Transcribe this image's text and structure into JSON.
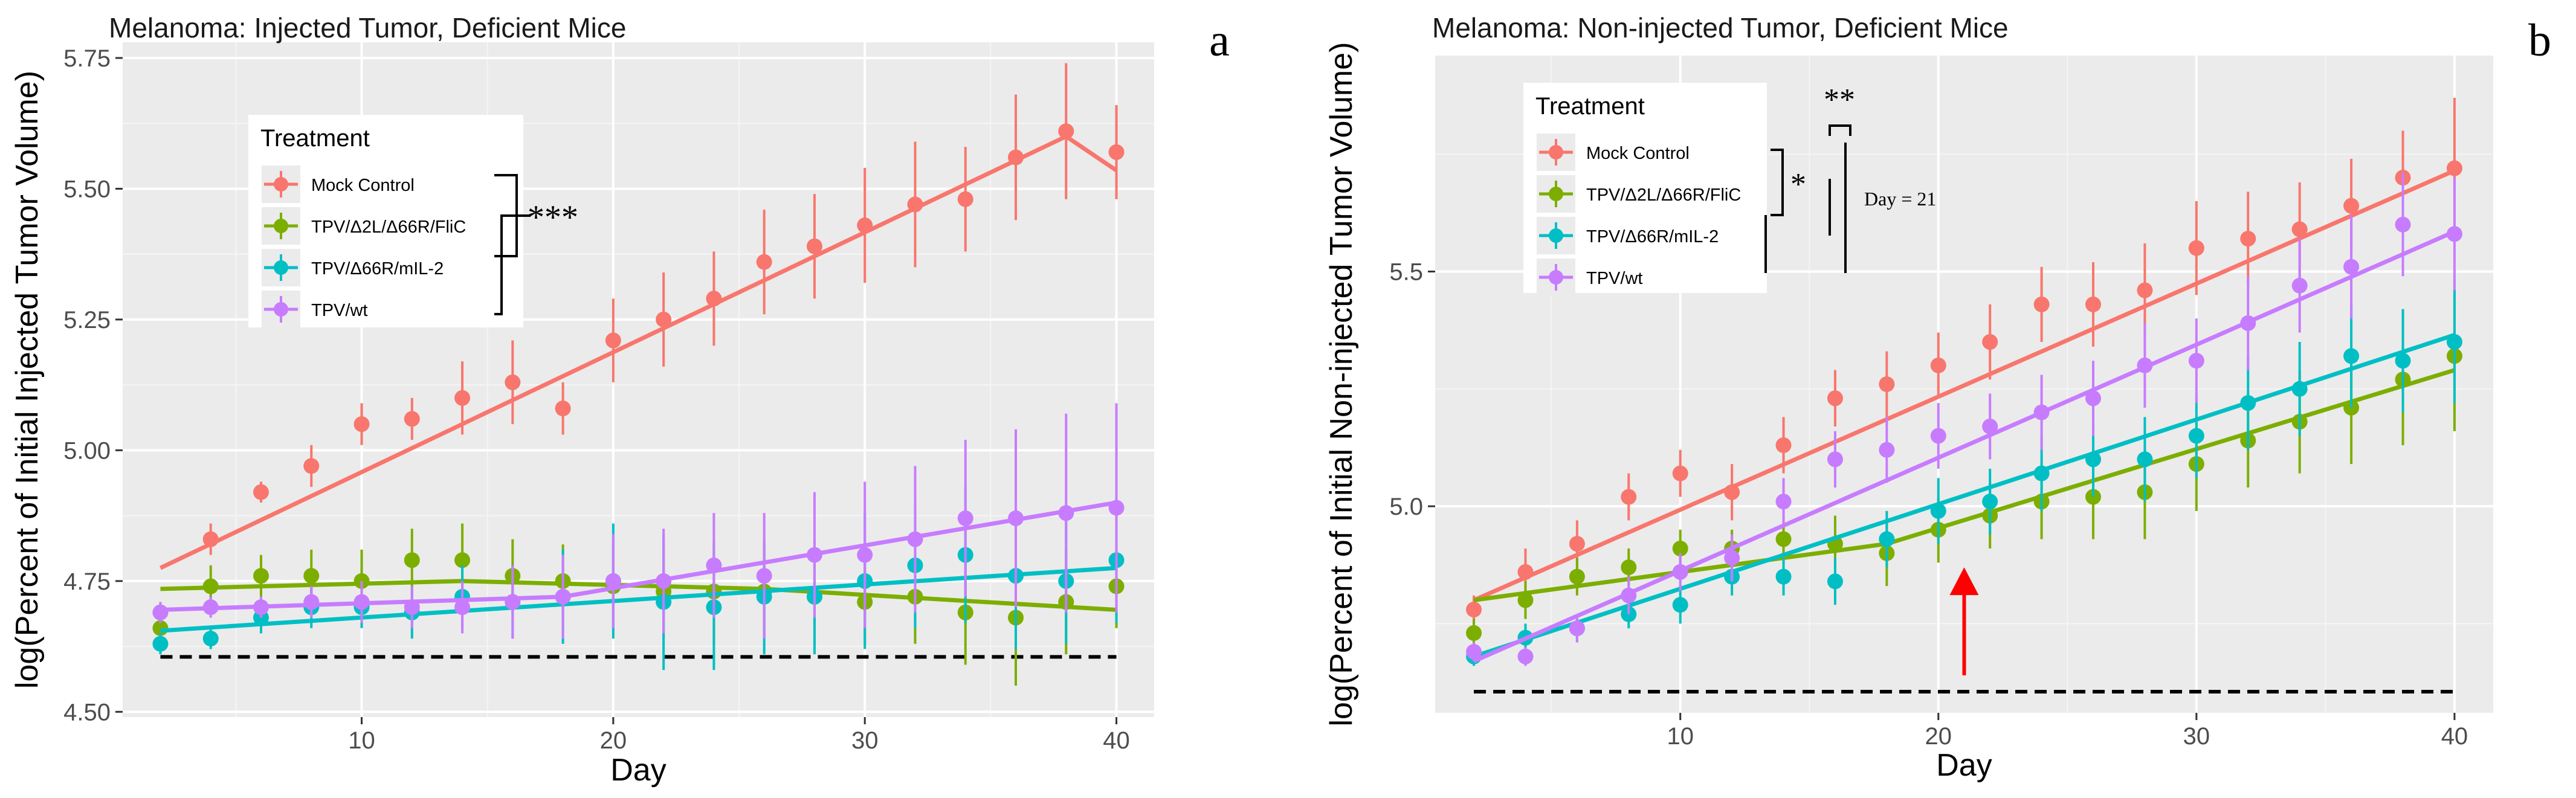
{
  "chart_data": [
    {
      "panel_label": "a",
      "type": "line",
      "title": "Melanoma: Injected Tumor, Deficient Mice",
      "xlabel": "Day",
      "ylabel": "log(Percent of Initial Injected Tumor Volume)",
      "xlim": [
        0.5,
        41.5
      ],
      "ylim": [
        4.49,
        5.78
      ],
      "x_ticks": [
        10,
        20,
        30,
        40
      ],
      "x_tick_labels": [
        "10",
        "20",
        "30",
        "40"
      ],
      "y_ticks": [
        4.5,
        4.75,
        5.0,
        5.25,
        5.5,
        5.75
      ],
      "y_tick_labels": [
        "4.50",
        "4.75",
        "5.00",
        "5.25",
        "5.50",
        "5.75"
      ],
      "grid": true,
      "legend": {
        "title": "Treatment",
        "position": "upper-left inside"
      },
      "reference_line": {
        "y": 4.605,
        "x_range": [
          2,
          40
        ],
        "style": "dashed"
      },
      "annotations": [
        {
          "text": "***",
          "brackets": [
            [
              "Mock Control",
              "TPV/Δ66R/mIL-2"
            ],
            [
              "Mock Control",
              "TPV/wt"
            ]
          ]
        }
      ],
      "series": [
        {
          "name": "Mock Control",
          "color": "#F8766D",
          "x": [
            2,
            4,
            6,
            8,
            10,
            12,
            14,
            16,
            18,
            20,
            22,
            24,
            26,
            28,
            30,
            32,
            34,
            36,
            38,
            40
          ],
          "y": [
            4.69,
            4.83,
            4.92,
            4.97,
            5.05,
            5.06,
            5.1,
            5.13,
            5.08,
            5.21,
            5.25,
            5.29,
            5.36,
            5.39,
            5.43,
            5.47,
            5.48,
            5.56,
            5.61,
            5.57
          ],
          "err": [
            0.02,
            0.03,
            0.02,
            0.04,
            0.04,
            0.04,
            0.07,
            0.08,
            0.05,
            0.08,
            0.09,
            0.09,
            0.1,
            0.1,
            0.11,
            0.12,
            0.1,
            0.12,
            0.13,
            0.09
          ],
          "fit": [
            [
              2,
              4.775
            ],
            [
              38,
              5.6
            ],
            [
              40,
              5.535
            ]
          ]
        },
        {
          "name": "TPV/Δ2L/Δ66R/FliC",
          "color": "#7CAE00",
          "x": [
            2,
            4,
            6,
            8,
            10,
            12,
            14,
            16,
            18,
            20,
            22,
            24,
            26,
            28,
            30,
            32,
            34,
            36,
            38,
            40
          ],
          "y": [
            4.66,
            4.74,
            4.76,
            4.76,
            4.75,
            4.79,
            4.79,
            4.76,
            4.75,
            4.74,
            4.73,
            4.73,
            4.73,
            4.72,
            4.71,
            4.72,
            4.69,
            4.68,
            4.71,
            4.74
          ],
          "err": [
            0.02,
            0.04,
            0.04,
            0.05,
            0.06,
            0.06,
            0.07,
            0.07,
            0.07,
            0.08,
            0.09,
            0.1,
            0.09,
            0.09,
            0.08,
            0.09,
            0.1,
            0.13,
            0.1,
            0.08
          ],
          "fit": [
            [
              2,
              4.735
            ],
            [
              14,
              4.75
            ],
            [
              26,
              4.735
            ],
            [
              40,
              4.695
            ]
          ]
        },
        {
          "name": "TPV/Δ66R/mIL-2",
          "color": "#00BFC4",
          "x": [
            2,
            4,
            6,
            8,
            10,
            12,
            14,
            16,
            18,
            20,
            22,
            24,
            26,
            28,
            30,
            32,
            34,
            36,
            38,
            40
          ],
          "y": [
            4.63,
            4.64,
            4.68,
            4.7,
            4.7,
            4.69,
            4.72,
            4.71,
            4.72,
            4.75,
            4.71,
            4.7,
            4.72,
            4.72,
            4.75,
            4.78,
            4.8,
            4.76,
            4.75,
            4.79
          ],
          "err": [
            0.02,
            0.02,
            0.03,
            0.04,
            0.04,
            0.05,
            0.06,
            0.07,
            0.09,
            0.11,
            0.13,
            0.12,
            0.11,
            0.11,
            0.13,
            0.12,
            0.13,
            0.14,
            0.12,
            0.12
          ],
          "fit": [
            [
              2,
              4.655
            ],
            [
              40,
              4.775
            ]
          ]
        },
        {
          "name": "TPV/wt",
          "color": "#C77CFF",
          "x": [
            2,
            4,
            6,
            8,
            10,
            12,
            14,
            16,
            18,
            20,
            22,
            24,
            26,
            28,
            30,
            32,
            34,
            36,
            38,
            40
          ],
          "y": [
            4.69,
            4.7,
            4.7,
            4.71,
            4.71,
            4.7,
            4.7,
            4.71,
            4.72,
            4.75,
            4.75,
            4.78,
            4.76,
            4.8,
            4.8,
            4.83,
            4.87,
            4.87,
            4.88,
            4.89
          ],
          "err": [
            0.02,
            0.02,
            0.02,
            0.03,
            0.04,
            0.04,
            0.05,
            0.07,
            0.08,
            0.09,
            0.1,
            0.1,
            0.12,
            0.12,
            0.14,
            0.14,
            0.15,
            0.17,
            0.19,
            0.2
          ],
          "fit": [
            [
              2,
              4.695
            ],
            [
              18,
              4.72
            ],
            [
              40,
              4.9
            ]
          ]
        }
      ]
    },
    {
      "panel_label": "b",
      "type": "line",
      "title": "Melanoma: Non-injected Tumor, Deficient Mice",
      "xlabel": "Day",
      "ylabel": "log(Percent of Initial Non-injected Tumor Volume)",
      "xlim": [
        0.5,
        41.5
      ],
      "ylim": [
        4.56,
        5.96
      ],
      "x_ticks": [
        10,
        20,
        30,
        40
      ],
      "x_tick_labels": [
        "10",
        "20",
        "30",
        "40"
      ],
      "y_ticks": [
        5.0,
        5.5
      ],
      "y_tick_labels": [
        "5.0",
        "5.5"
      ],
      "grid": true,
      "legend": {
        "title": "Treatment",
        "position": "upper-left inside"
      },
      "reference_line": {
        "y": 4.605,
        "x_range": [
          2,
          40
        ],
        "style": "dashed"
      },
      "arrow": {
        "x": 21,
        "y_from": 4.64,
        "y_to": 4.87,
        "color": "#FF0000"
      },
      "annotations": [
        {
          "text": "*",
          "between": [
            "Mock Control",
            "TPV/Δ2L/Δ66R/FliC"
          ]
        },
        {
          "text": "**",
          "between": [
            "Mock Control",
            "TPV/Δ66R/mIL-2"
          ]
        },
        {
          "text": "Day = 21"
        }
      ],
      "series": [
        {
          "name": "Mock Control",
          "color": "#F8766D",
          "x": [
            2,
            4,
            6,
            8,
            10,
            12,
            14,
            16,
            18,
            20,
            22,
            24,
            26,
            28,
            30,
            32,
            34,
            36,
            38,
            40
          ],
          "y": [
            4.78,
            4.86,
            4.92,
            5.02,
            5.07,
            5.03,
            5.13,
            5.23,
            5.26,
            5.3,
            5.35,
            5.43,
            5.43,
            5.46,
            5.55,
            5.57,
            5.59,
            5.64,
            5.7,
            5.72
          ],
          "err": [
            0.03,
            0.05,
            0.05,
            0.05,
            0.05,
            0.06,
            0.06,
            0.06,
            0.07,
            0.07,
            0.08,
            0.08,
            0.09,
            0.1,
            0.1,
            0.1,
            0.1,
            0.1,
            0.1,
            0.15
          ],
          "fit": [
            [
              2,
              4.8
            ],
            [
              40,
              5.715
            ]
          ]
        },
        {
          "name": "TPV/Δ2L/Δ66R/FliC",
          "color": "#7CAE00",
          "x": [
            2,
            4,
            6,
            8,
            10,
            12,
            14,
            16,
            18,
            20,
            22,
            24,
            26,
            28,
            30,
            32,
            34,
            36,
            38,
            40
          ],
          "y": [
            4.73,
            4.8,
            4.85,
            4.87,
            4.91,
            4.91,
            4.93,
            4.92,
            4.9,
            4.95,
            4.98,
            5.01,
            5.02,
            5.03,
            5.09,
            5.14,
            5.18,
            5.21,
            5.27,
            5.32
          ],
          "err": [
            0.03,
            0.04,
            0.04,
            0.04,
            0.04,
            0.04,
            0.05,
            0.06,
            0.07,
            0.07,
            0.07,
            0.08,
            0.09,
            0.1,
            0.1,
            0.1,
            0.11,
            0.12,
            0.14,
            0.16
          ],
          "fit": [
            [
              2,
              4.8
            ],
            [
              18,
              4.92
            ],
            [
              40,
              5.29
            ]
          ]
        },
        {
          "name": "TPV/Δ66R/mIL-2",
          "color": "#00BFC4",
          "x": [
            2,
            4,
            6,
            8,
            10,
            12,
            14,
            16,
            18,
            20,
            22,
            24,
            26,
            28,
            30,
            32,
            34,
            36,
            38,
            40
          ],
          "y": [
            4.68,
            4.72,
            4.74,
            4.77,
            4.79,
            4.85,
            4.85,
            4.84,
            4.93,
            4.99,
            5.01,
            5.07,
            5.1,
            5.1,
            5.15,
            5.22,
            5.25,
            5.32,
            5.31,
            5.35
          ],
          "err": [
            0.02,
            0.03,
            0.03,
            0.03,
            0.04,
            0.04,
            0.04,
            0.05,
            0.06,
            0.07,
            0.07,
            0.08,
            0.08,
            0.09,
            0.09,
            0.1,
            0.1,
            0.11,
            0.11,
            0.13
          ],
          "fit": [
            [
              2,
              4.68
            ],
            [
              40,
              5.365
            ]
          ]
        },
        {
          "name": "TPV/wt",
          "color": "#C77CFF",
          "x": [
            2,
            4,
            6,
            8,
            10,
            12,
            14,
            16,
            18,
            20,
            22,
            24,
            26,
            28,
            30,
            32,
            34,
            36,
            38,
            40
          ],
          "y": [
            4.69,
            4.68,
            4.74,
            4.81,
            4.86,
            4.89,
            5.01,
            5.1,
            5.12,
            5.15,
            5.17,
            5.2,
            5.23,
            5.3,
            5.31,
            5.39,
            5.47,
            5.51,
            5.6,
            5.58
          ],
          "err": [
            0.02,
            0.02,
            0.03,
            0.04,
            0.04,
            0.05,
            0.05,
            0.06,
            0.07,
            0.07,
            0.07,
            0.08,
            0.08,
            0.09,
            0.09,
            0.1,
            0.1,
            0.11,
            0.11,
            0.12
          ],
          "fit": [
            [
              2,
              4.67
            ],
            [
              40,
              5.585
            ]
          ]
        }
      ]
    }
  ]
}
